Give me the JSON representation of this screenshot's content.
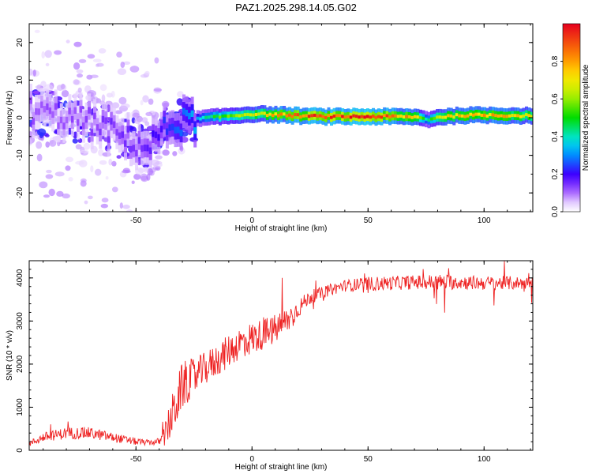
{
  "title": "PAZ1.2025.298.14.05.G02",
  "chart_data": [
    {
      "type": "heatmap",
      "title": "PAZ1.2025.298.14.05.G02",
      "xlabel": "Height of straight line (km)",
      "ylabel": "Frequency (Hz)",
      "xlim": [
        -96,
        121
      ],
      "ylim": [
        -25,
        25
      ],
      "xticks": [
        -50,
        0,
        50,
        100
      ],
      "yticks": [
        -20,
        -10,
        0,
        10,
        20
      ],
      "ridge": {
        "x": [
          -96,
          -80,
          -70,
          -60,
          -50,
          -45,
          -40,
          -35,
          -30,
          -25,
          -20,
          -15,
          -10,
          0,
          10,
          20,
          30,
          40,
          50,
          60,
          70,
          75,
          80,
          90,
          100,
          110,
          121
        ],
        "freq": [
          2,
          0,
          -1,
          -4,
          -7,
          -8,
          -4,
          -2,
          -1,
          -0.5,
          0,
          0.2,
          0.5,
          1,
          0.8,
          0.5,
          0.3,
          0.3,
          0.3,
          0.3,
          0.2,
          -0.5,
          0.2,
          0.6,
          0.7,
          0.6,
          0.5
        ],
        "amplitude": [
          0.12,
          0.12,
          0.13,
          0.15,
          0.15,
          0.18,
          0.22,
          0.25,
          0.28,
          0.35,
          0.45,
          0.55,
          0.6,
          0.7,
          0.8,
          0.9,
          0.95,
          0.95,
          0.95,
          0.9,
          0.75,
          0.4,
          0.7,
          0.85,
          0.85,
          0.8,
          0.7
        ]
      },
      "colorbar": {
        "label": "Normalized spectral amplitude",
        "ticks": [
          "0.0",
          "0.2",
          "0.4",
          "0.6",
          "0.8"
        ],
        "range": [
          0,
          1
        ]
      }
    },
    {
      "type": "line",
      "xlabel": "Height of straight line (km)",
      "ylabel": "SNR (10 * v/v)",
      "xlim": [
        -96,
        121
      ],
      "ylim": [
        0,
        4400
      ],
      "xticks": [
        -50,
        0,
        50,
        100
      ],
      "yticks": [
        0,
        1000,
        2000,
        3000,
        4000
      ],
      "series": [
        {
          "name": "SNR",
          "color": "#ee2222",
          "x": [
            -96,
            -90,
            -80,
            -70,
            -60,
            -50,
            -45,
            -40,
            -38,
            -35,
            -32,
            -30,
            -28,
            -25,
            -20,
            -15,
            -10,
            -5,
            0,
            5,
            10,
            15,
            20,
            25,
            30,
            35,
            40,
            50,
            60,
            70,
            80,
            90,
            100,
            110,
            121
          ],
          "values": [
            150,
            300,
            400,
            400,
            300,
            200,
            180,
            200,
            300,
            700,
            1200,
            1500,
            1600,
            1700,
            1900,
            2100,
            2300,
            2500,
            2600,
            2700,
            2800,
            3000,
            3300,
            3550,
            3650,
            3750,
            3820,
            3860,
            3880,
            3900,
            3900,
            3900,
            3880,
            3880,
            3880
          ],
          "noise": [
            120,
            200,
            250,
            250,
            200,
            150,
            120,
            150,
            400,
            900,
            1000,
            1000,
            900,
            800,
            700,
            700,
            700,
            700,
            700,
            650,
            650,
            600,
            400,
            300,
            250,
            250,
            250,
            300,
            300,
            300,
            350,
            300,
            300,
            300,
            250
          ]
        }
      ]
    }
  ]
}
